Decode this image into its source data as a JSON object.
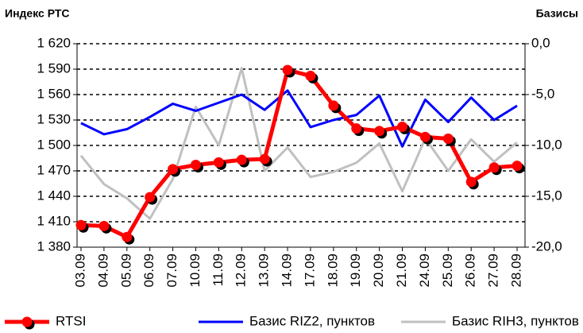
{
  "chart_data": {
    "type": "line",
    "ylabel": "Индекс РТС",
    "y2label": "Базисы",
    "categories": [
      "03.09",
      "04.09",
      "05.09",
      "06.09",
      "07.09",
      "10.09",
      "11.09",
      "12.09",
      "13.09",
      "14.09",
      "17.09",
      "18.09",
      "19.09",
      "20.09",
      "21.09",
      "24.09",
      "25.09",
      "26.09",
      "27.09",
      "28.09"
    ],
    "series": [
      {
        "name": "Базис RIH3, пунктов",
        "color": "#c0c0c0",
        "axis": "y2",
        "values": [
          -11.0,
          -13.8,
          -15.2,
          -17.2,
          -13.3,
          -6.2,
          -10.0,
          -2.4,
          -12.5,
          -10.2,
          -13.1,
          -12.6,
          -11.7,
          -9.8,
          -14.5,
          -9.3,
          -12.5,
          -9.4,
          -11.6,
          -9.7
        ]
      },
      {
        "name": "Базис RIZ2, пунктов",
        "color": "#0000ff",
        "axis": "y2",
        "values": [
          -7.8,
          -8.9,
          -8.4,
          -7.2,
          -5.9,
          -6.6,
          -5.8,
          -5.0,
          -6.5,
          -4.6,
          -8.2,
          -7.5,
          -7.0,
          -5.1,
          -10.1,
          -5.5,
          -7.7,
          -5.3,
          -7.5,
          -6.1
        ]
      },
      {
        "name": "RTSI",
        "color": "#ff0000",
        "markers": true,
        "values": [
          1406,
          1405,
          1392,
          1439,
          1472,
          1477,
          1480,
          1483,
          1484,
          1589,
          1582,
          1547,
          1520,
          1517,
          1522,
          1510,
          1508,
          1457,
          1474,
          1476
        ]
      }
    ],
    "ylim": [
      1380,
      1620
    ],
    "yticks": [
      {
        "value": 1380,
        "label": "1 380"
      },
      {
        "value": 1410,
        "label": "1 410"
      },
      {
        "value": 1440,
        "label": "1 440"
      },
      {
        "value": 1470,
        "label": "1 470"
      },
      {
        "value": 1500,
        "label": "1 500"
      },
      {
        "value": 1530,
        "label": "1 530"
      },
      {
        "value": 1560,
        "label": "1 560"
      },
      {
        "value": 1590,
        "label": "1 590"
      },
      {
        "value": 1620,
        "label": "1 620"
      }
    ],
    "y2lim": [
      -20,
      0
    ],
    "y2ticks": [
      {
        "value": -20,
        "label": "-20,0"
      },
      {
        "value": -15,
        "label": "-15,0"
      },
      {
        "value": -10,
        "label": "-10,0"
      },
      {
        "value": -5,
        "label": "-5,0"
      },
      {
        "value": 0,
        "label": "0,0"
      }
    ],
    "grid": true,
    "legend": "bottom"
  }
}
